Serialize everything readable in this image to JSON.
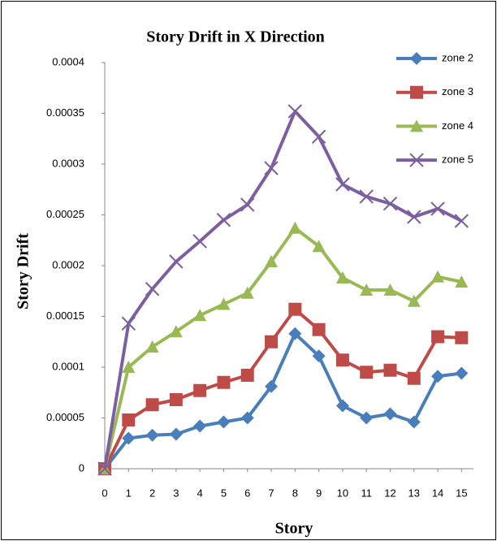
{
  "chart_data": {
    "type": "line",
    "title": "Story Drift in X Direction",
    "x_label": "Story",
    "y_label": "Story Drift",
    "x": [
      0,
      1,
      2,
      3,
      4,
      5,
      6,
      7,
      8,
      9,
      10,
      11,
      12,
      13,
      14,
      15
    ],
    "xlim": [
      0,
      15.5
    ],
    "xticks": [
      0,
      1,
      2,
      3,
      4,
      5,
      6,
      7,
      8,
      9,
      10,
      11,
      12,
      13,
      14,
      15
    ],
    "ylim": [
      0,
      0.0004
    ],
    "yticks": [
      0,
      5e-05,
      0.0001,
      0.00015,
      0.0002,
      0.00025,
      0.0003,
      0.00035,
      0.0004
    ],
    "legend": "top-right",
    "series": [
      {
        "name": "zone 2",
        "color": "#4a7ebb",
        "marker": "diamond",
        "values": [
          0,
          3e-05,
          3.3e-05,
          3.4e-05,
          4.2e-05,
          4.6e-05,
          5e-05,
          8.1e-05,
          0.000133,
          0.000111,
          6.2e-05,
          5e-05,
          5.4e-05,
          4.6e-05,
          9.1e-05,
          9.4e-05
        ]
      },
      {
        "name": "zone 3",
        "color": "#be4b48",
        "marker": "square",
        "values": [
          0,
          4.8e-05,
          6.3e-05,
          6.8e-05,
          7.7e-05,
          8.5e-05,
          9.2e-05,
          0.000125,
          0.000157,
          0.000137,
          0.000107,
          9.5e-05,
          9.7e-05,
          8.9e-05,
          0.00013,
          0.000129
        ]
      },
      {
        "name": "zone 4",
        "color": "#98b954",
        "marker": "triangle",
        "values": [
          0,
          0.0001,
          0.00012,
          0.000135,
          0.000151,
          0.000162,
          0.000173,
          0.000204,
          0.000237,
          0.000219,
          0.000188,
          0.000176,
          0.000176,
          0.000165,
          0.000189,
          0.000184
        ]
      },
      {
        "name": "zone 5",
        "color": "#7d5fa0",
        "marker": "x",
        "values": [
          0,
          0.000143,
          0.000177,
          0.000204,
          0.000224,
          0.000245,
          0.00026,
          0.000296,
          0.000352,
          0.000327,
          0.00028,
          0.000268,
          0.000261,
          0.000248,
          0.000256,
          0.000244
        ]
      }
    ]
  }
}
